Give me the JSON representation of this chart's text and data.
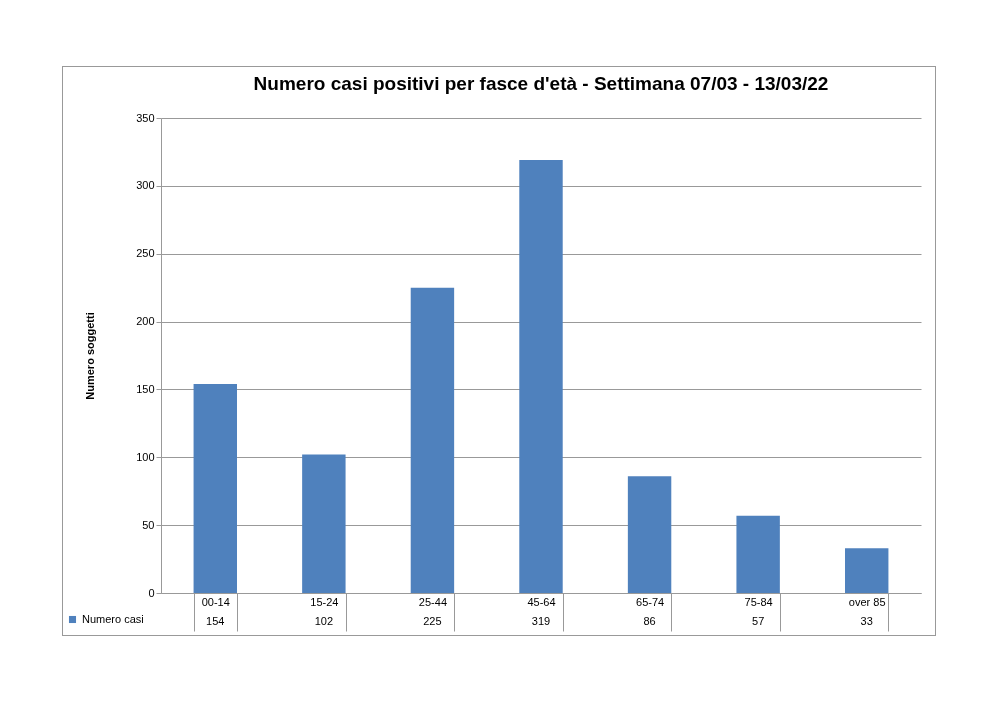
{
  "chart_data": {
    "type": "bar",
    "title": "Numero casi positivi per fasce d'età - Settimana 07/03 - 13/03/22",
    "ylabel": "Numero soggetti",
    "categories": [
      "00-14",
      "15-24",
      "25-44",
      "45-64",
      "65-74",
      "75-84",
      "over 85"
    ],
    "series": [
      {
        "name": "Numero casi",
        "color": "#4f81bd",
        "values": [
          154,
          102,
          225,
          319,
          86,
          57,
          33
        ]
      }
    ],
    "ylim": [
      0,
      350
    ],
    "yticks": [
      0,
      50,
      100,
      150,
      200,
      250,
      300,
      350
    ],
    "grid": "y",
    "legend": "bottom left",
    "data_labels": true
  }
}
